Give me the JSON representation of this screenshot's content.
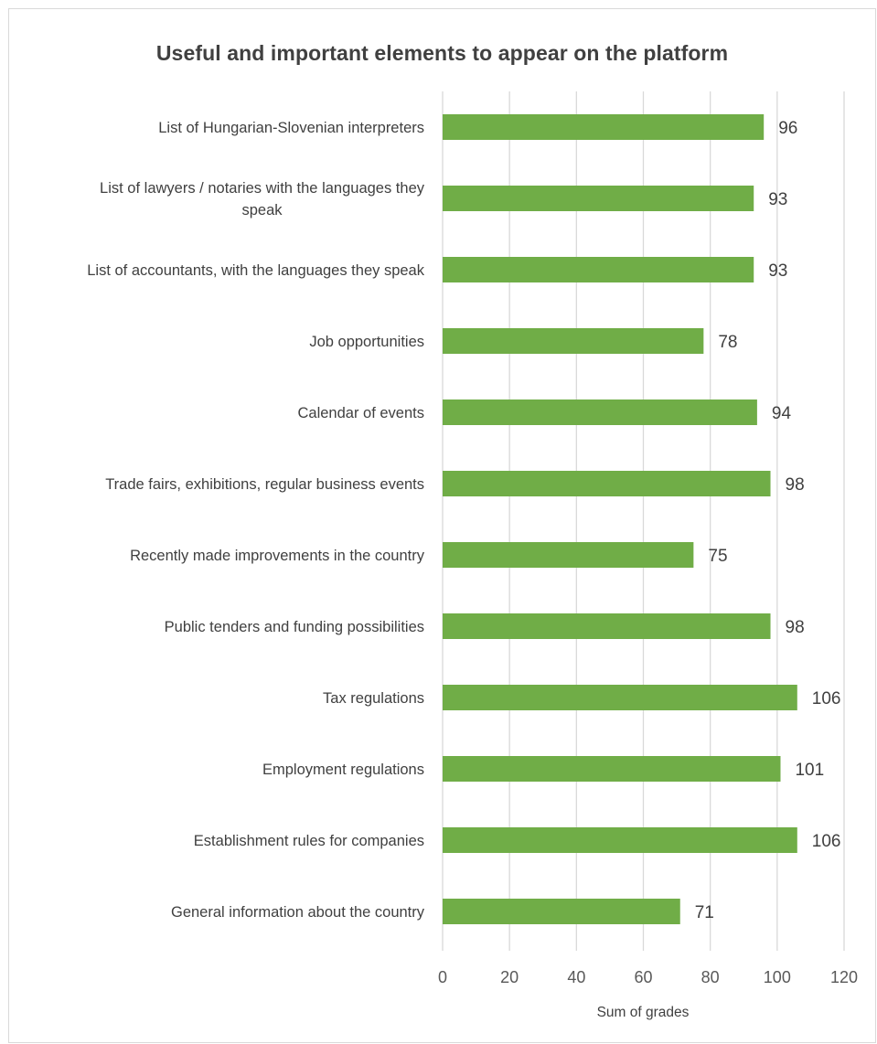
{
  "chart_data": {
    "type": "bar",
    "orientation": "horizontal",
    "title": "Useful and important elements to appear on the platform",
    "xlabel": "Sum of grades",
    "ylabel": "",
    "xlim": [
      0,
      120
    ],
    "xticks": [
      0,
      20,
      40,
      60,
      80,
      100,
      120
    ],
    "grid": true,
    "legend": "none",
    "bar_color": "#70ad47",
    "categories": [
      [
        "List of Hungarian-Slovenian interpreters"
      ],
      [
        "List of lawyers / notaries with the languages they",
        "speak"
      ],
      [
        "List of accountants, with the languages they speak"
      ],
      [
        "Job opportunities"
      ],
      [
        "Calendar of events"
      ],
      [
        "Trade fairs, exhibitions, regular business events"
      ],
      [
        "Recently made improvements in the country"
      ],
      [
        "Public tenders and funding possibilities"
      ],
      [
        "Tax regulations"
      ],
      [
        "Employment regulations"
      ],
      [
        "Establishment rules for companies"
      ],
      [
        "General information about the country"
      ]
    ],
    "values": [
      96,
      93,
      93,
      78,
      94,
      98,
      75,
      98,
      106,
      101,
      106,
      71
    ]
  }
}
